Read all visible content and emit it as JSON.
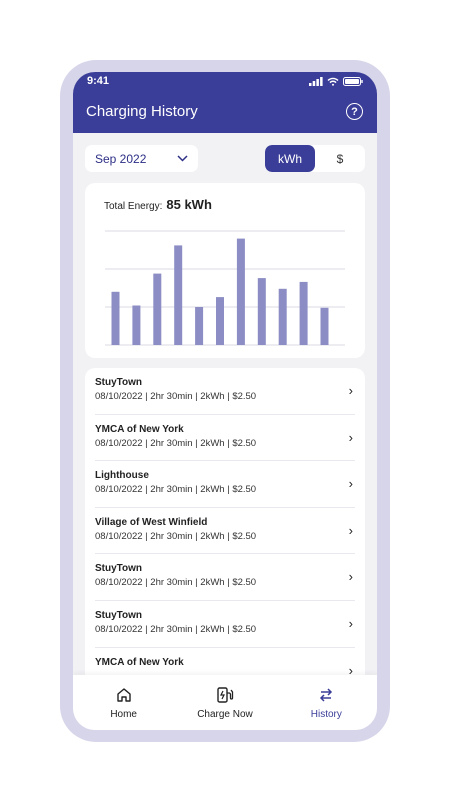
{
  "status": {
    "time": "9:41"
  },
  "header": {
    "title": "Charging History",
    "help_icon": "question-circle-icon"
  },
  "filter": {
    "month": "Sep 2022",
    "toggle": {
      "options": [
        "kWh",
        "$"
      ],
      "selected": "kWh"
    }
  },
  "summary": {
    "label": "Total Energy:",
    "value": "85 kWh"
  },
  "chart_data": {
    "type": "bar",
    "values": [
      7,
      5.2,
      9.4,
      13.1,
      5,
      6.3,
      14,
      8.8,
      7.4,
      8.3,
      4.9
    ],
    "title": "",
    "xlabel": "",
    "ylabel": "",
    "ylim": [
      0,
      15
    ],
    "grid": true,
    "bar_color": "#8c8dc4"
  },
  "sessions": [
    {
      "name": "StuyTown",
      "detail": "08/10/2022  |  2hr 30min  |  2kWh  |  $2.50"
    },
    {
      "name": "YMCA of New York",
      "detail": "08/10/2022  |  2hr 30min  |  2kWh  |  $2.50"
    },
    {
      "name": "Lighthouse",
      "detail": "08/10/2022  |  2hr 30min  |  2kWh  |  $2.50"
    },
    {
      "name": "Village of West Winfield",
      "detail": "08/10/2022  |  2hr 30min  |  2kWh  |  $2.50"
    },
    {
      "name": "StuyTown",
      "detail": "08/10/2022  |  2hr 30min  |  2kWh  |  $2.50"
    },
    {
      "name": "StuyTown",
      "detail": "08/10/2022  |  2hr 30min  |  2kWh  |  $2.50"
    },
    {
      "name": "YMCA of New York",
      "detail": ""
    }
  ],
  "tabs": [
    {
      "label": "Home",
      "icon": "home-icon"
    },
    {
      "label": "Charge Now",
      "icon": "charger-icon"
    },
    {
      "label": "History",
      "icon": "swap-arrows-icon",
      "active": true
    }
  ],
  "colors": {
    "primary": "#3b3e98",
    "bar": "#8c8dc4",
    "frame": "#d7d5e9"
  }
}
